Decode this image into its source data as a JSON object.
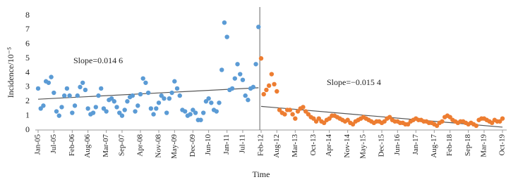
{
  "chart_data": {
    "type": "scatter",
    "y_label": "Incidence/10⁻⁵",
    "x_label": "Time",
    "annotations": [
      "Slope=0.014 6",
      "Slope=−0.015 4"
    ],
    "ylim": [
      0,
      8
    ],
    "yticks": [
      0,
      1,
      2,
      3,
      4,
      5,
      6,
      7,
      8
    ],
    "categories": [
      "Jan-05",
      null,
      null,
      null,
      null,
      null,
      "Jul-05",
      null,
      null,
      null,
      null,
      null,
      null,
      "Feb-06",
      null,
      null,
      null,
      null,
      null,
      "Aug-06",
      null,
      null,
      null,
      null,
      null,
      null,
      "Mar-07",
      null,
      null,
      null,
      null,
      null,
      "Sep-07",
      null,
      null,
      null,
      null,
      null,
      null,
      "Apr-08",
      null,
      null,
      null,
      null,
      null,
      null,
      "Nov-08",
      null,
      null,
      null,
      null,
      null,
      "May-09",
      null,
      null,
      null,
      null,
      null,
      null,
      "Dec-09",
      null,
      null,
      null,
      null,
      null,
      "Jun-10",
      null,
      null,
      null,
      null,
      null,
      null,
      "Jan-11",
      null,
      null,
      null,
      null,
      null,
      "Jul-11",
      null,
      null,
      null,
      null,
      null,
      null,
      "Feb-12",
      null,
      null,
      null,
      null,
      null,
      "Aug-12",
      null,
      null,
      null,
      null,
      null,
      null,
      "Mar-13",
      null,
      null,
      null,
      null,
      null,
      null,
      "Oct-13",
      null,
      null,
      null,
      null,
      null,
      "Apr-14",
      null,
      null,
      null,
      null,
      null,
      null,
      "Nov-14",
      null,
      null,
      null,
      null,
      null,
      "May-15",
      null,
      null,
      null,
      null,
      null,
      null,
      "Dec-15",
      null,
      null,
      null,
      null,
      null,
      "Jun-16",
      null,
      null,
      null,
      null,
      null,
      null,
      "Jan-17",
      null,
      null,
      null,
      null,
      null,
      null,
      "Aug-17",
      null,
      null,
      null,
      null,
      null,
      "Feb-18",
      null,
      null,
      null,
      null,
      null,
      null,
      "Sep-18",
      null,
      null,
      null,
      null,
      null,
      "Mar-19",
      null,
      null,
      null,
      null,
      null,
      null,
      "Oct-19"
    ],
    "series": [
      {
        "color": "#5b9bd5",
        "trend": [
          2.15,
          2.95
        ],
        "values": [
          2.9,
          1.5,
          1.7,
          3.4,
          3.3,
          3.7,
          2.6,
          1.3,
          1.0,
          1.6,
          2.4,
          2.9,
          2.4,
          1.2,
          1.7,
          2.4,
          3.0,
          3.3,
          2.8,
          1.5,
          1.1,
          1.2,
          1.6,
          2.4,
          2.9,
          1.5,
          1.3,
          2.1,
          2.2,
          2.0,
          1.6,
          1.2,
          1.0,
          1.4,
          2.0,
          2.3,
          2.4,
          1.3,
          1.7,
          2.5,
          3.6,
          3.3,
          2.6,
          1.5,
          1.1,
          1.5,
          1.9,
          2.4,
          2.2,
          1.2,
          2.2,
          2.6,
          3.4,
          2.9,
          2.4,
          1.4,
          1.3,
          1.0,
          1.1,
          1.4,
          1.2,
          0.7,
          0.7,
          1.2,
          2.0,
          2.2,
          1.9,
          1.4,
          1.3,
          1.9,
          4.2,
          7.5,
          6.5,
          2.8,
          2.9,
          3.6,
          4.6,
          3.9,
          3.5,
          2.4,
          2.1,
          2.9,
          3.0,
          4.6,
          7.2,
          null,
          null,
          null,
          null,
          null,
          null,
          null,
          null,
          null,
          null,
          null,
          null,
          null,
          null,
          null,
          null,
          null,
          null,
          null,
          null,
          null,
          null,
          null,
          null,
          null,
          null,
          null,
          null,
          null,
          null,
          null,
          null,
          null,
          null,
          null,
          null,
          null,
          null,
          null,
          null,
          null,
          null,
          null,
          null,
          null,
          null,
          null,
          null,
          null,
          null,
          null,
          null,
          null,
          null,
          null,
          null,
          null,
          null,
          null,
          null,
          null,
          null,
          null,
          null,
          null,
          null,
          null,
          null,
          null,
          null,
          null,
          null,
          null,
          null,
          null,
          null,
          null,
          null,
          null,
          null,
          null,
          null,
          null,
          null,
          null,
          null,
          null,
          null,
          null,
          null,
          null,
          null,
          null
        ]
      },
      {
        "color": "#ed7d31",
        "trend": [
          1.65,
          0.2
        ],
        "values": [
          null,
          null,
          null,
          null,
          null,
          null,
          null,
          null,
          null,
          null,
          null,
          null,
          null,
          null,
          null,
          null,
          null,
          null,
          null,
          null,
          null,
          null,
          null,
          null,
          null,
          null,
          null,
          null,
          null,
          null,
          null,
          null,
          null,
          null,
          null,
          null,
          null,
          null,
          null,
          null,
          null,
          null,
          null,
          null,
          null,
          null,
          null,
          null,
          null,
          null,
          null,
          null,
          null,
          null,
          null,
          null,
          null,
          null,
          null,
          null,
          null,
          null,
          null,
          null,
          null,
          null,
          null,
          null,
          null,
          null,
          null,
          null,
          null,
          null,
          null,
          null,
          null,
          null,
          null,
          null,
          null,
          null,
          null,
          null,
          null,
          5.0,
          2.5,
          2.8,
          3.1,
          3.9,
          3.2,
          2.7,
          1.4,
          1.2,
          1.1,
          1.4,
          1.4,
          1.1,
          0.8,
          1.3,
          1.5,
          1.6,
          1.3,
          1.1,
          0.9,
          0.8,
          0.6,
          0.8,
          0.6,
          0.5,
          0.7,
          0.8,
          1.0,
          1.0,
          0.9,
          0.8,
          0.7,
          0.6,
          0.7,
          0.5,
          0.4,
          0.6,
          0.7,
          0.8,
          0.9,
          0.8,
          0.7,
          0.6,
          0.5,
          0.6,
          0.6,
          0.5,
          0.6,
          0.8,
          0.9,
          0.7,
          0.6,
          0.6,
          0.5,
          0.5,
          0.4,
          0.4,
          0.6,
          0.7,
          0.8,
          0.7,
          0.7,
          0.6,
          0.6,
          0.5,
          0.5,
          0.4,
          0.3,
          0.5,
          0.6,
          0.9,
          1.0,
          0.9,
          0.7,
          0.6,
          0.5,
          0.6,
          0.6,
          0.5,
          0.4,
          0.5,
          0.4,
          0.3,
          0.7,
          0.8,
          0.8,
          0.7,
          0.6,
          0.5,
          0.7,
          0.6,
          0.6,
          0.8
        ]
      }
    ]
  }
}
